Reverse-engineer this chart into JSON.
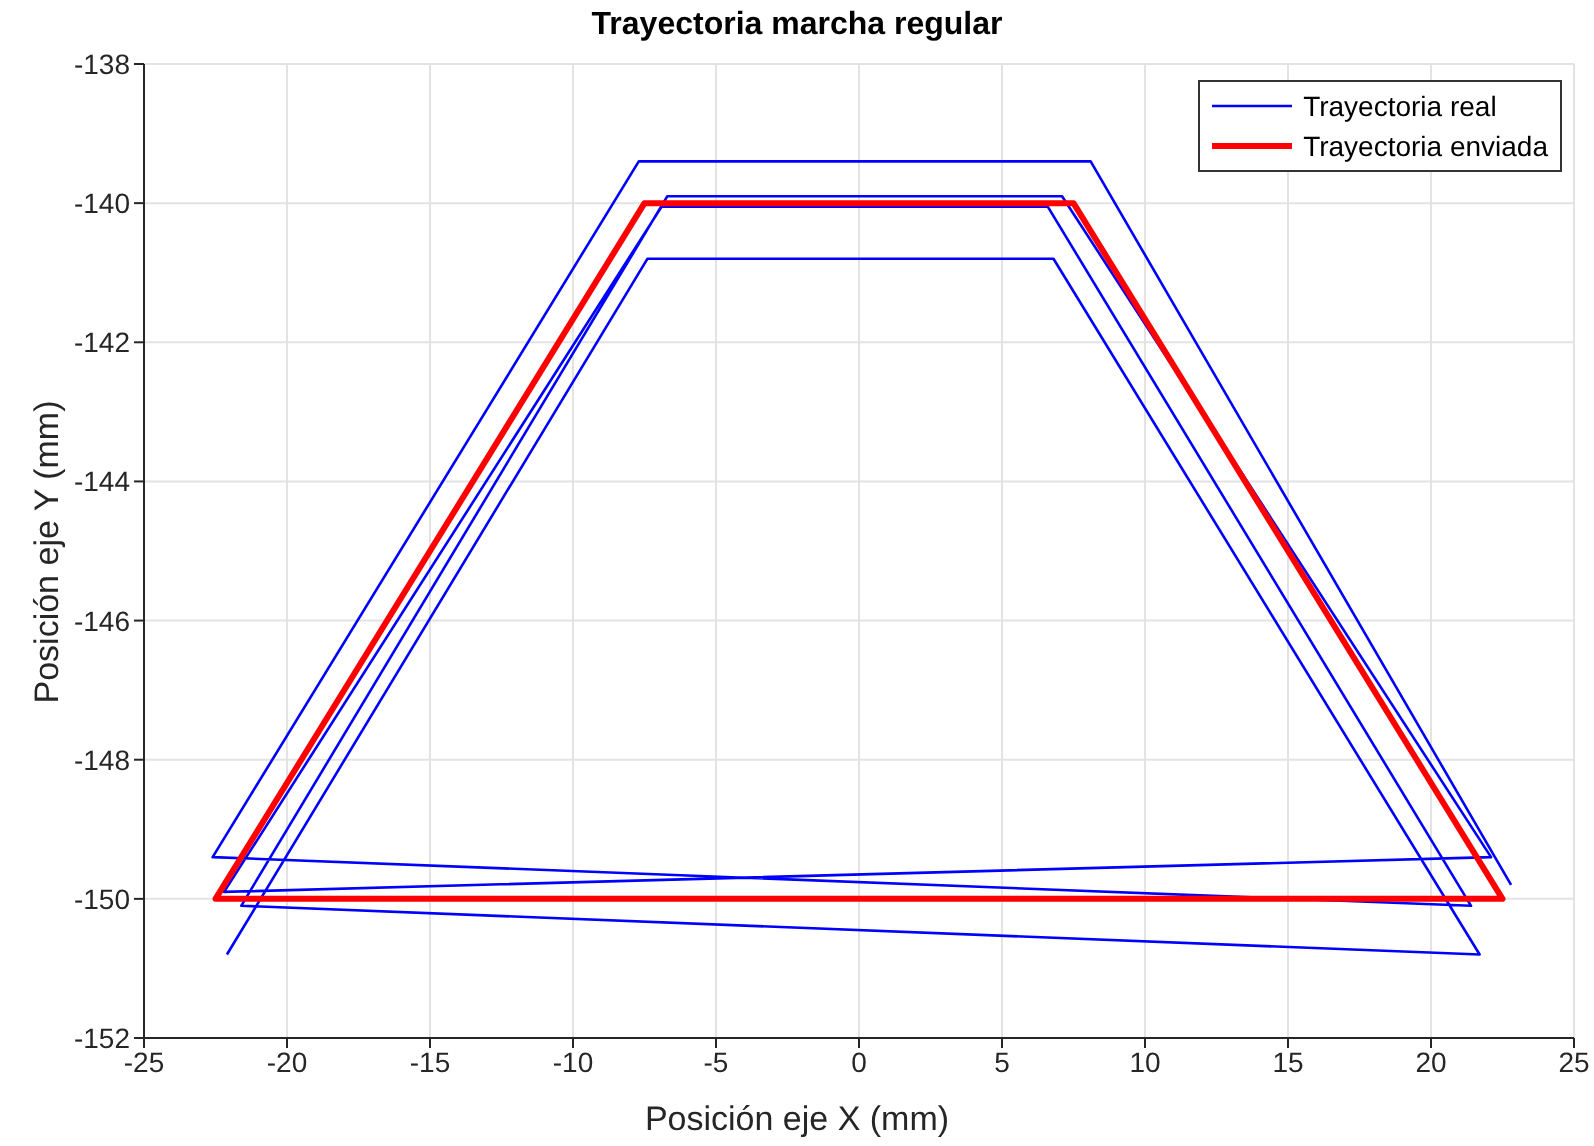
{
  "chart_data": {
    "type": "line",
    "title": "Trayectoria marcha regular",
    "xlabel": "Posición eje X (mm)",
    "ylabel": "Posición eje Y (mm)",
    "xlim": [
      -25,
      25
    ],
    "xticks": [
      -25,
      -20,
      -15,
      -10,
      -5,
      0,
      5,
      10,
      15,
      20,
      25
    ],
    "ylim": [
      -152,
      -138
    ],
    "yticks": [
      -152,
      -150,
      -148,
      -146,
      -144,
      -142,
      -140,
      -138
    ],
    "grid": true,
    "legend": "top right",
    "marker": "none",
    "line_style": "solid",
    "series": [
      {
        "name": "Trayectoria real",
        "color": "#0000ff",
        "x": [
          -22.1,
          -7.4,
          6.8,
          21.7,
          -21.6,
          -6.7,
          7.1,
          22.1,
          -22.2,
          -6.9,
          6.6,
          21.4,
          -22.6,
          -7.7,
          8.1,
          22.8
        ],
        "values": [
          -150.8,
          -140.8,
          -140.8,
          -150.8,
          -150.1,
          -139.9,
          -139.9,
          -149.4,
          -149.9,
          -140.05,
          -140.05,
          -150.1,
          -149.4,
          -139.4,
          -139.4,
          -149.8
        ]
      },
      {
        "name": "Trayectoria enviada",
        "color": "#ff0000",
        "x": [
          -22.5,
          -7.5,
          7.5,
          22.5,
          -22.5,
          -7.5
        ],
        "values": [
          -150,
          -140,
          -140,
          -150,
          -150,
          -140
        ]
      }
    ]
  }
}
